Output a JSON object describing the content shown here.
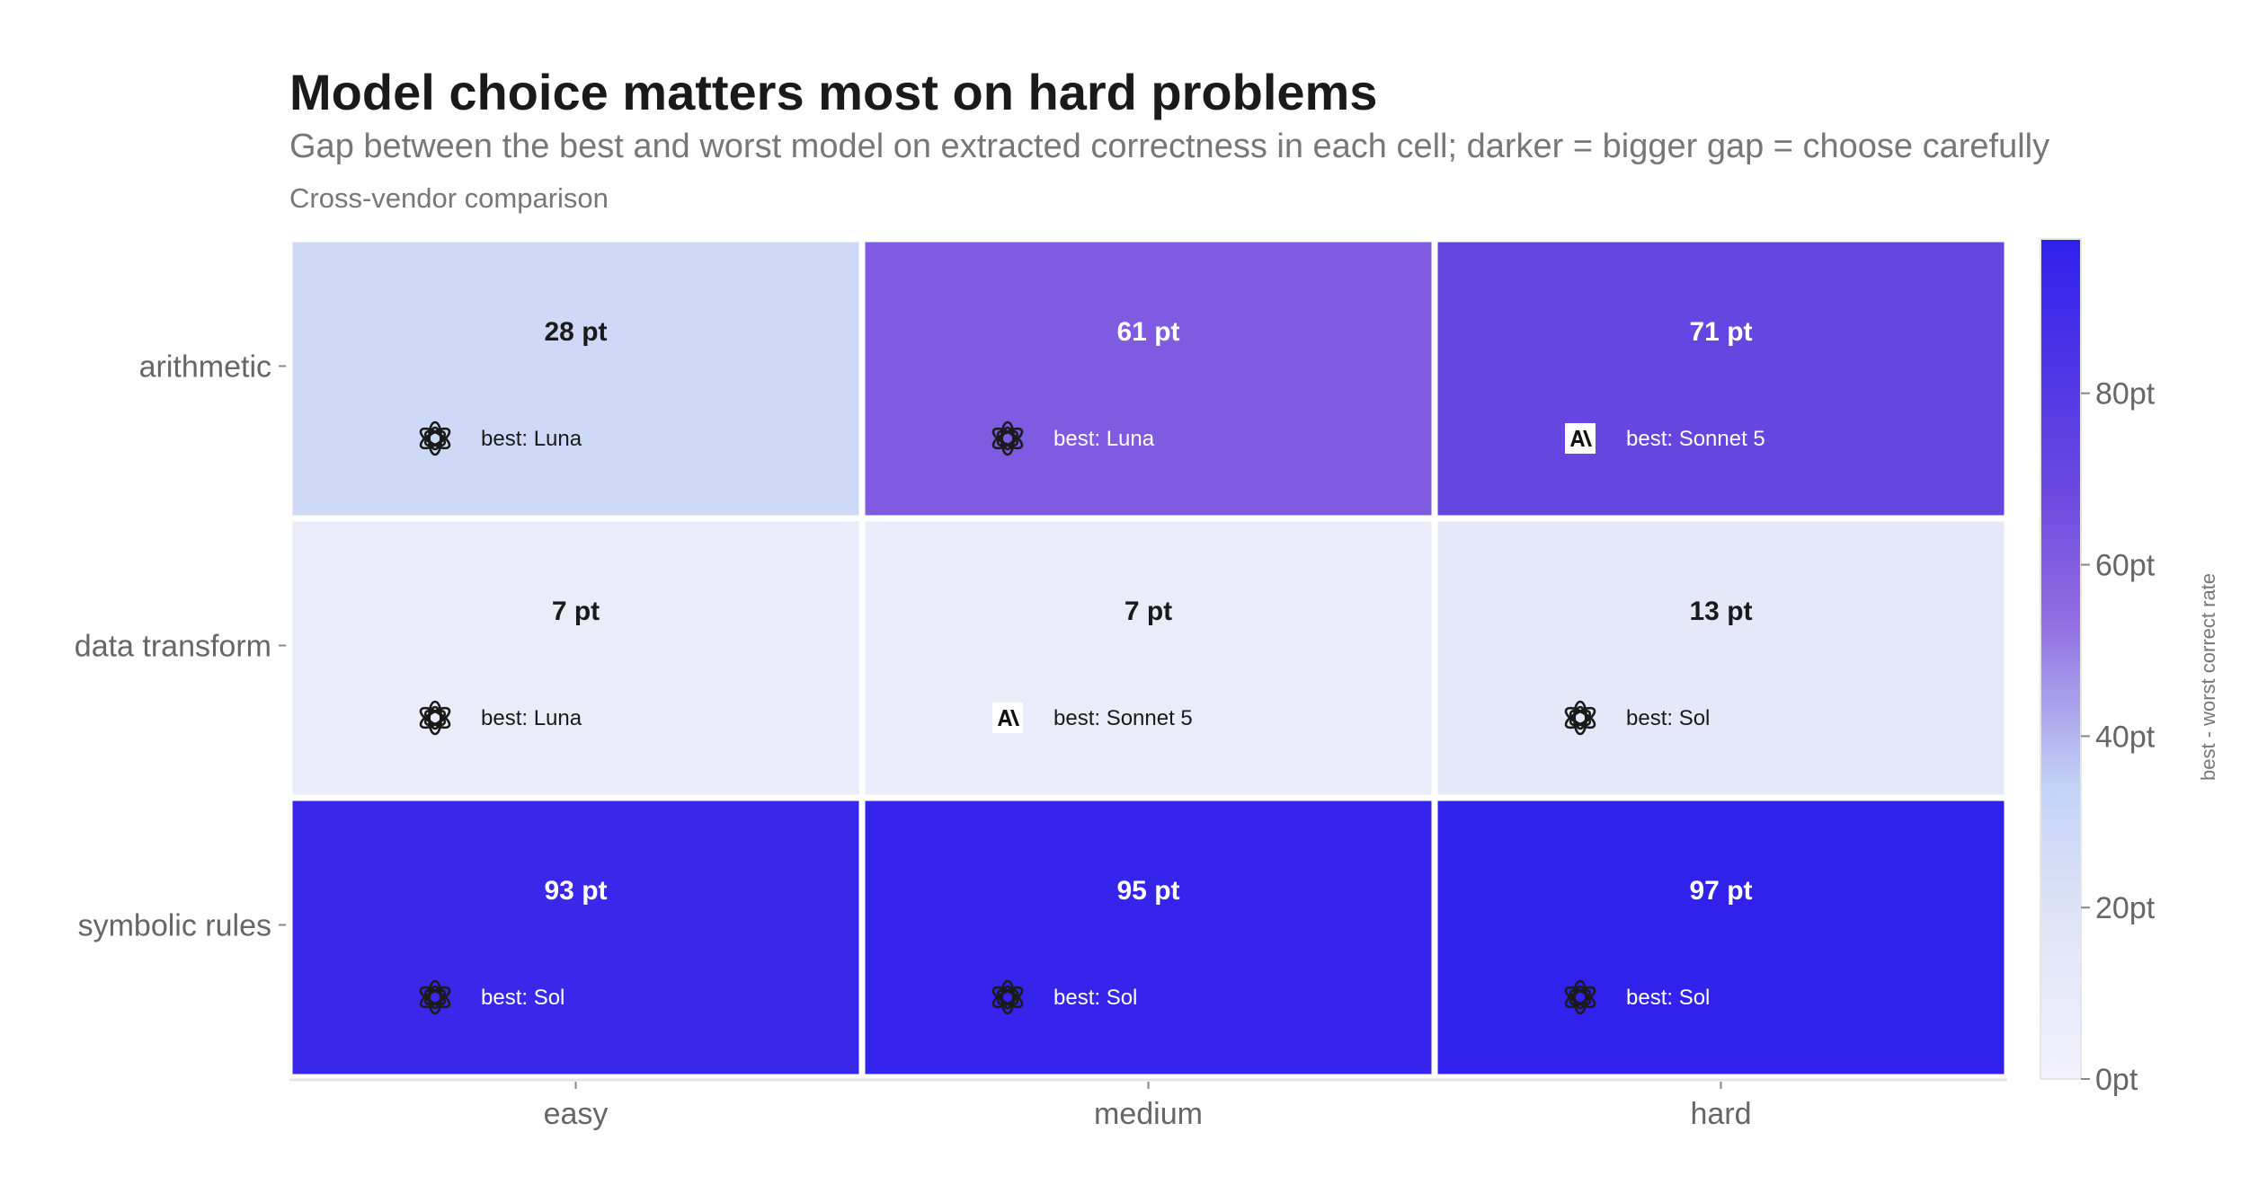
{
  "title": "Model choice matters most on hard problems",
  "subtitle": "Gap between the best and worst model on extracted correctness in each cell; darker = bigger gap = choose carefully",
  "note": "Cross-vendor comparison",
  "chart_data": {
    "type": "heatmap",
    "rows": [
      "arithmetic",
      "data transform",
      "symbolic rules"
    ],
    "columns": [
      "easy",
      "medium",
      "hard"
    ],
    "values": [
      [
        28,
        61,
        71
      ],
      [
        7,
        7,
        13
      ],
      [
        93,
        95,
        97
      ]
    ],
    "value_labels": [
      [
        "28 pt",
        "61 pt",
        "71 pt"
      ],
      [
        "7 pt",
        "7 pt",
        "13 pt"
      ],
      [
        "93 pt",
        "95 pt",
        "97 pt"
      ]
    ],
    "best_labels": [
      [
        "best: Luna",
        "best: Luna",
        "best: Sonnet 5"
      ],
      [
        "best: Luna",
        "best: Sonnet 5",
        "best: Sol"
      ],
      [
        "best: Sol",
        "best: Sol",
        "best: Sol"
      ]
    ],
    "best_vendor_icons": [
      [
        "openai-logo-icon",
        "openai-logo-icon",
        "anthropic-logo-icon"
      ],
      [
        "openai-logo-icon",
        "anthropic-logo-icon",
        "openai-logo-icon"
      ],
      [
        "openai-logo-icon",
        "openai-logo-icon",
        "openai-logo-icon"
      ]
    ],
    "colorbar": {
      "title": "best - worst correct rate",
      "range": [
        0,
        98
      ],
      "tick_values": [
        0,
        20,
        40,
        60,
        80
      ],
      "tick_labels": [
        "0pt",
        "20pt",
        "40pt",
        "60pt",
        "80pt"
      ],
      "colorscale": [
        [
          0.0,
          "#f2f1fc"
        ],
        [
          0.2,
          "#dde3f6"
        ],
        [
          0.35,
          "#c2d2f7"
        ],
        [
          0.55,
          "#8f6ce0"
        ],
        [
          0.7,
          "#6b49e0"
        ],
        [
          1.0,
          "#2f20ec"
        ]
      ]
    }
  }
}
